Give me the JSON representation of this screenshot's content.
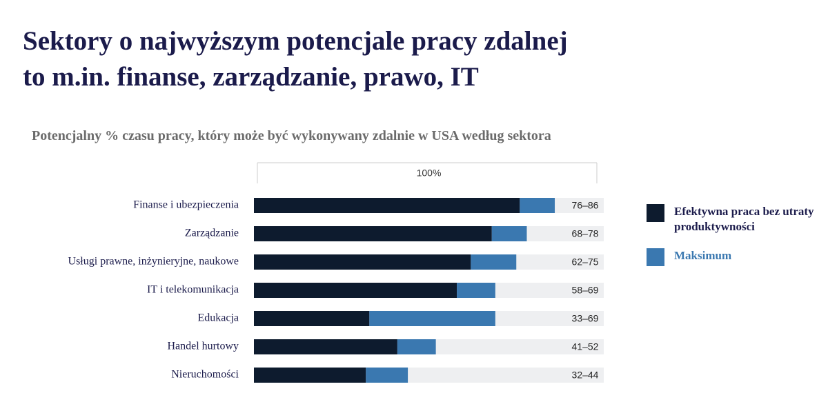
{
  "chart_data": {
    "type": "stacked_barh",
    "title": "Sektory o najwyższym potencjale pracy zdalnej\nto m.in. finanse, zarządzanie, prawo, IT",
    "subtitle": "Potencjalny % czasu pracy, który może być wykonywany zdalnie w USA według sektora",
    "categories": [
      "Finanse i ubezpieczenia",
      "Zarządzanie",
      "Usługi prawne, inżynieryjne, naukowe",
      "IT i telekomunikacja",
      "Edukacja",
      "Handel hurtowy",
      "Nieruchomości"
    ],
    "series": [
      {
        "name": "Efektywna praca bez utraty produktywności",
        "color": "#0d1b2e",
        "values": [
          76,
          68,
          62,
          58,
          33,
          41,
          32
        ],
        "value_labels": [
          "76–86",
          "68–78",
          "62–75",
          "58–69",
          "33–69",
          "41–52",
          "32–44"
        ]
      },
      {
        "name": "Maksimum",
        "color": "#3a78b0",
        "values": [
          10,
          10,
          13,
          11,
          36,
          11,
          12
        ]
      }
    ],
    "xlim": [
      0,
      100
    ],
    "xticks": [
      {
        "value": 100,
        "label": "100%"
      }
    ],
    "track_color": "#eeeff1"
  }
}
